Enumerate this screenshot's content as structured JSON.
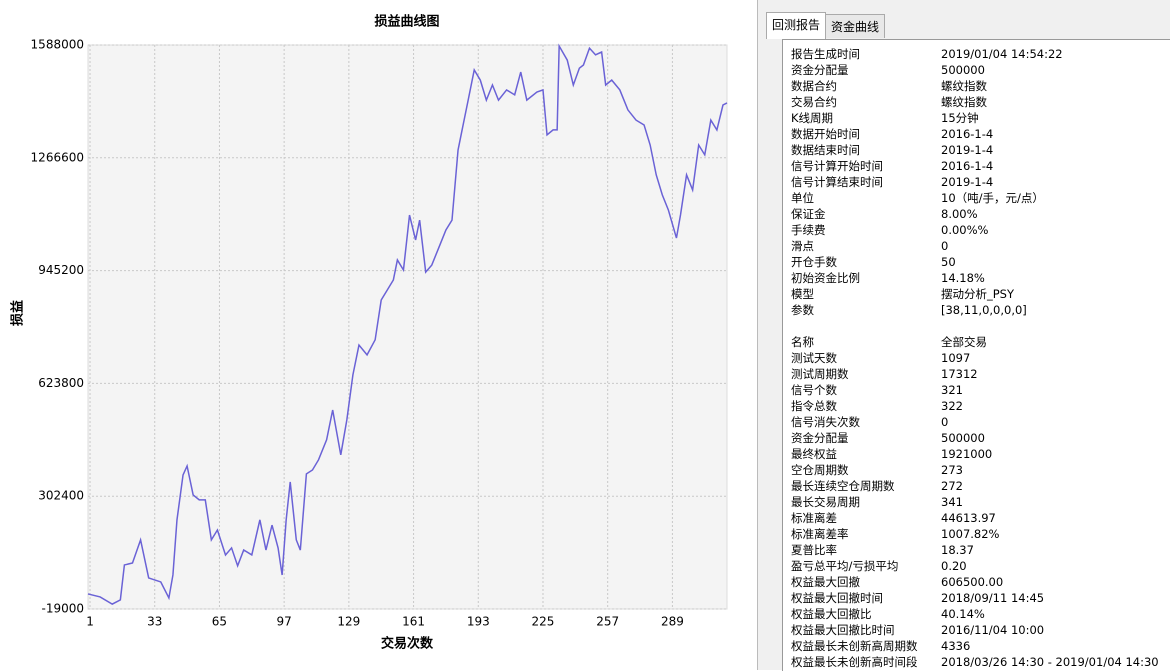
{
  "chart_data": {
    "type": "line",
    "title": "损益曲线图",
    "y_label": "损益",
    "x_label": "交易次数",
    "x": [
      0,
      6,
      12,
      16,
      18,
      22,
      26,
      30,
      36,
      40,
      42,
      44,
      47,
      49,
      52,
      55,
      58,
      61,
      64,
      68,
      71,
      74,
      77,
      81,
      85,
      88,
      91,
      94,
      96,
      98,
      100,
      103,
      105,
      108,
      111,
      114,
      118,
      121,
      125,
      128,
      131,
      134,
      138,
      142,
      145,
      148,
      151,
      153,
      156,
      159,
      162,
      164,
      167,
      170,
      174,
      177,
      180,
      183,
      185,
      188,
      191,
      194,
      197,
      200,
      203,
      207,
      211,
      214,
      217,
      222,
      225,
      227,
      230,
      232,
      233,
      237,
      240,
      243,
      245,
      248,
      251,
      254,
      256,
      259,
      263,
      267,
      271,
      275,
      278,
      281,
      284,
      287,
      291,
      293,
      296,
      299,
      302,
      305,
      308,
      311,
      314,
      316
    ],
    "series": [
      {
        "color": "#6a62d6",
        "values": [
          23900,
          15400,
          -5000,
          7000,
          106500,
          112000,
          178000,
          69500,
          58000,
          12500,
          78000,
          235000,
          363000,
          388500,
          306000,
          292000,
          292000,
          178000,
          206000,
          135000,
          155000,
          104000,
          149000,
          135000,
          235000,
          149000,
          220000,
          155000,
          78000,
          235000,
          343000,
          178000,
          149000,
          366000,
          377000,
          406000,
          463000,
          548000,
          420000,
          520000,
          648000,
          733000,
          705000,
          748000,
          861500,
          890000,
          918500,
          975500,
          947000,
          1103500,
          1032500,
          1089000,
          941000,
          961000,
          1018000,
          1061000,
          1089000,
          1289000,
          1346000,
          1431000,
          1517000,
          1488000,
          1431000,
          1474000,
          1431000,
          1460000,
          1446000,
          1511000,
          1431000,
          1454000,
          1460000,
          1332000,
          1346000,
          1346000,
          1585000,
          1545000,
          1474000,
          1522000,
          1531000,
          1579000,
          1560000,
          1568000,
          1474000,
          1488000,
          1460000,
          1403000,
          1374000,
          1360000,
          1303000,
          1218000,
          1161000,
          1118000,
          1038000,
          1103500,
          1218000,
          1175000,
          1303000,
          1275000,
          1374000,
          1346000,
          1417000,
          1423000
        ]
      }
    ],
    "xlim": [
      0,
      316
    ],
    "xticks": [
      1,
      33,
      65,
      97,
      129,
      161,
      193,
      225,
      257,
      289
    ],
    "ylim": [
      -19000,
      1588000
    ],
    "yticks": [
      -19000,
      302400,
      623800,
      945200,
      1266600,
      1588000
    ],
    "grid": true
  },
  "tabs": [
    "回测报告",
    "资金曲线"
  ],
  "report": [
    [
      [
        "报告生成时间",
        "2019/01/04 14:54:22"
      ],
      [
        "资金分配量",
        "500000"
      ],
      [
        "数据合约",
        "螺纹指数"
      ],
      [
        "交易合约",
        "螺纹指数"
      ],
      [
        "K线周期",
        "15分钟"
      ],
      [
        "数据开始时间",
        "2016-1-4"
      ],
      [
        "数据结束时间",
        "2019-1-4"
      ],
      [
        "信号计算开始时间",
        "2016-1-4"
      ],
      [
        "信号计算结束时间",
        "2019-1-4"
      ],
      [
        "单位",
        "10（吨/手，元/点）"
      ],
      [
        "保证金",
        "8.00%"
      ],
      [
        "手续费",
        "0.00%%"
      ],
      [
        "滑点",
        "0"
      ],
      [
        "开仓手数",
        "50"
      ],
      [
        "初始资金比例",
        "14.18%"
      ],
      [
        "模型",
        "摆动分析_PSY"
      ],
      [
        "参数",
        "[38,11,0,0,0,0]"
      ]
    ],
    [
      [
        "名称",
        "全部交易"
      ],
      [
        "测试天数",
        "1097"
      ],
      [
        "测试周期数",
        "17312"
      ],
      [
        "信号个数",
        "321"
      ],
      [
        "指令总数",
        "322"
      ],
      [
        "信号消失次数",
        "0"
      ],
      [
        "资金分配量",
        "500000"
      ],
      [
        "最终权益",
        "1921000"
      ],
      [
        "空仓周期数",
        "273"
      ],
      [
        "最长连续空仓周期数",
        "272"
      ],
      [
        "最长交易周期",
        "341"
      ],
      [
        "标准离差",
        "44613.97"
      ],
      [
        "标准离差率",
        "1007.82%"
      ],
      [
        "夏普比率",
        "18.37"
      ],
      [
        "盈亏总平均/亏损平均",
        "0.20"
      ],
      [
        "权益最大回撤",
        "606500.00"
      ],
      [
        "权益最大回撤时间",
        "2018/09/11 14:45"
      ],
      [
        "权益最大回撤比",
        "40.14%"
      ],
      [
        "权益最大回撤比时间",
        "2016/11/04 10:00"
      ],
      [
        "权益最长未创新高周期数",
        "4336"
      ],
      [
        "权益最长未创新高时间段",
        "2018/03/26 14:30 - 2019/01/04 14:30"
      ]
    ]
  ]
}
